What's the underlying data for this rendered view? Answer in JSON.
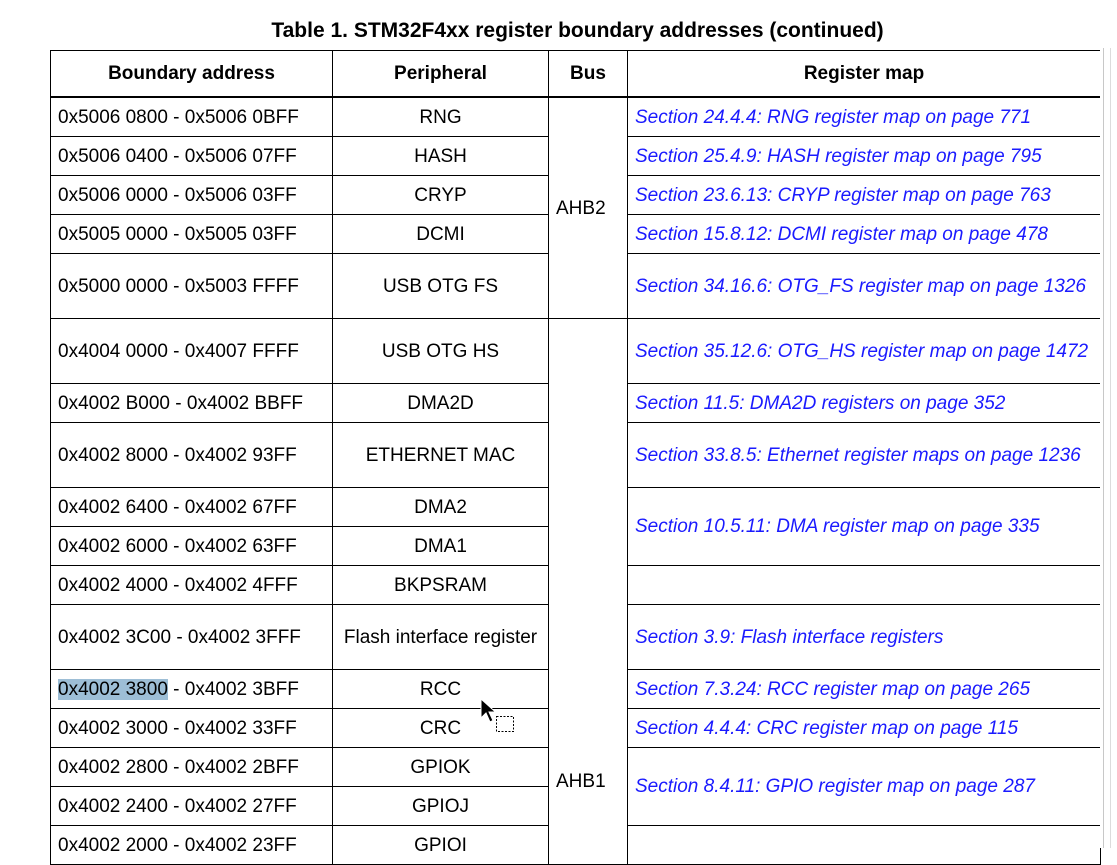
{
  "title": "Table 1. STM32F4xx register boundary addresses (continued)",
  "headers": {
    "boundary": "Boundary address",
    "peripheral": "Peripheral",
    "bus": "Bus",
    "register_map": "Register map"
  },
  "bus_labels": {
    "ahb2": "AHB2",
    "ahb1": "AHB1"
  },
  "rows": [
    {
      "addr": "0x5006 0800 - 0x5006 0BFF",
      "per": "RNG",
      "reg": "Section 24.4.4: RNG register map on page 771"
    },
    {
      "addr": "0x5006 0400 - 0x5006 07FF",
      "per": "HASH",
      "reg": "Section 25.4.9: HASH register map on page 795"
    },
    {
      "addr": "0x5006 0000 - 0x5006 03FF",
      "per": "CRYP",
      "reg": "Section 23.6.13: CRYP register map on page 763"
    },
    {
      "addr": "0x5005 0000 - 0x5005 03FF",
      "per": "DCMI",
      "reg": "Section 15.8.12: DCMI register map on page 478"
    },
    {
      "addr": "0x5000 0000 - 0x5003 FFFF",
      "per": "USB OTG FS",
      "reg": "Section 34.16.6: OTG_FS register map on page 1326"
    },
    {
      "addr": "0x4004 0000 - 0x4007 FFFF",
      "per": "USB OTG HS",
      "reg": "Section 35.12.6: OTG_HS register map on page 1472"
    },
    {
      "addr": "0x4002 B000 - 0x4002 BBFF",
      "per": "DMA2D",
      "reg": "Section 11.5: DMA2D registers on page 352"
    },
    {
      "addr": "0x4002 8000 - 0x4002 93FF",
      "per": "ETHERNET MAC",
      "reg": "Section 33.8.5: Ethernet register maps on page 1236"
    },
    {
      "addr": "0x4002 6400 - 0x4002 67FF",
      "per": "DMA2",
      "reg": "Section 10.5.11: DMA register map on page 335"
    },
    {
      "addr": "0x4002 6000 - 0x4002 63FF",
      "per": "DMA1",
      "reg": ""
    },
    {
      "addr": "0x4002 4000 - 0x4002 4FFF",
      "per": "BKPSRAM",
      "reg": ""
    },
    {
      "addr": "0x4002 3C00 - 0x4002 3FFF",
      "per": "Flash interface register",
      "reg": "Section 3.9: Flash interface registers"
    },
    {
      "addr_sel": "0x4002 3800",
      "addr_rest": " - 0x4002 3BFF",
      "per": "RCC",
      "reg": "Section 7.3.24: RCC register map on page 265"
    },
    {
      "addr": "0x4002 3000 - 0x4002 33FF",
      "per": "CRC",
      "reg": "Section 4.4.4: CRC register map on page 115"
    },
    {
      "addr": "0x4002 2800 - 0x4002 2BFF",
      "per": "GPIOK",
      "reg": "Section 8.4.11: GPIO register map on page 287"
    },
    {
      "addr": "0x4002 2400 - 0x4002 27FF",
      "per": "GPIOJ",
      "reg": ""
    },
    {
      "addr": "0x4002 2000 - 0x4002 23FF",
      "per": "GPIOI",
      "reg": ""
    }
  ]
}
